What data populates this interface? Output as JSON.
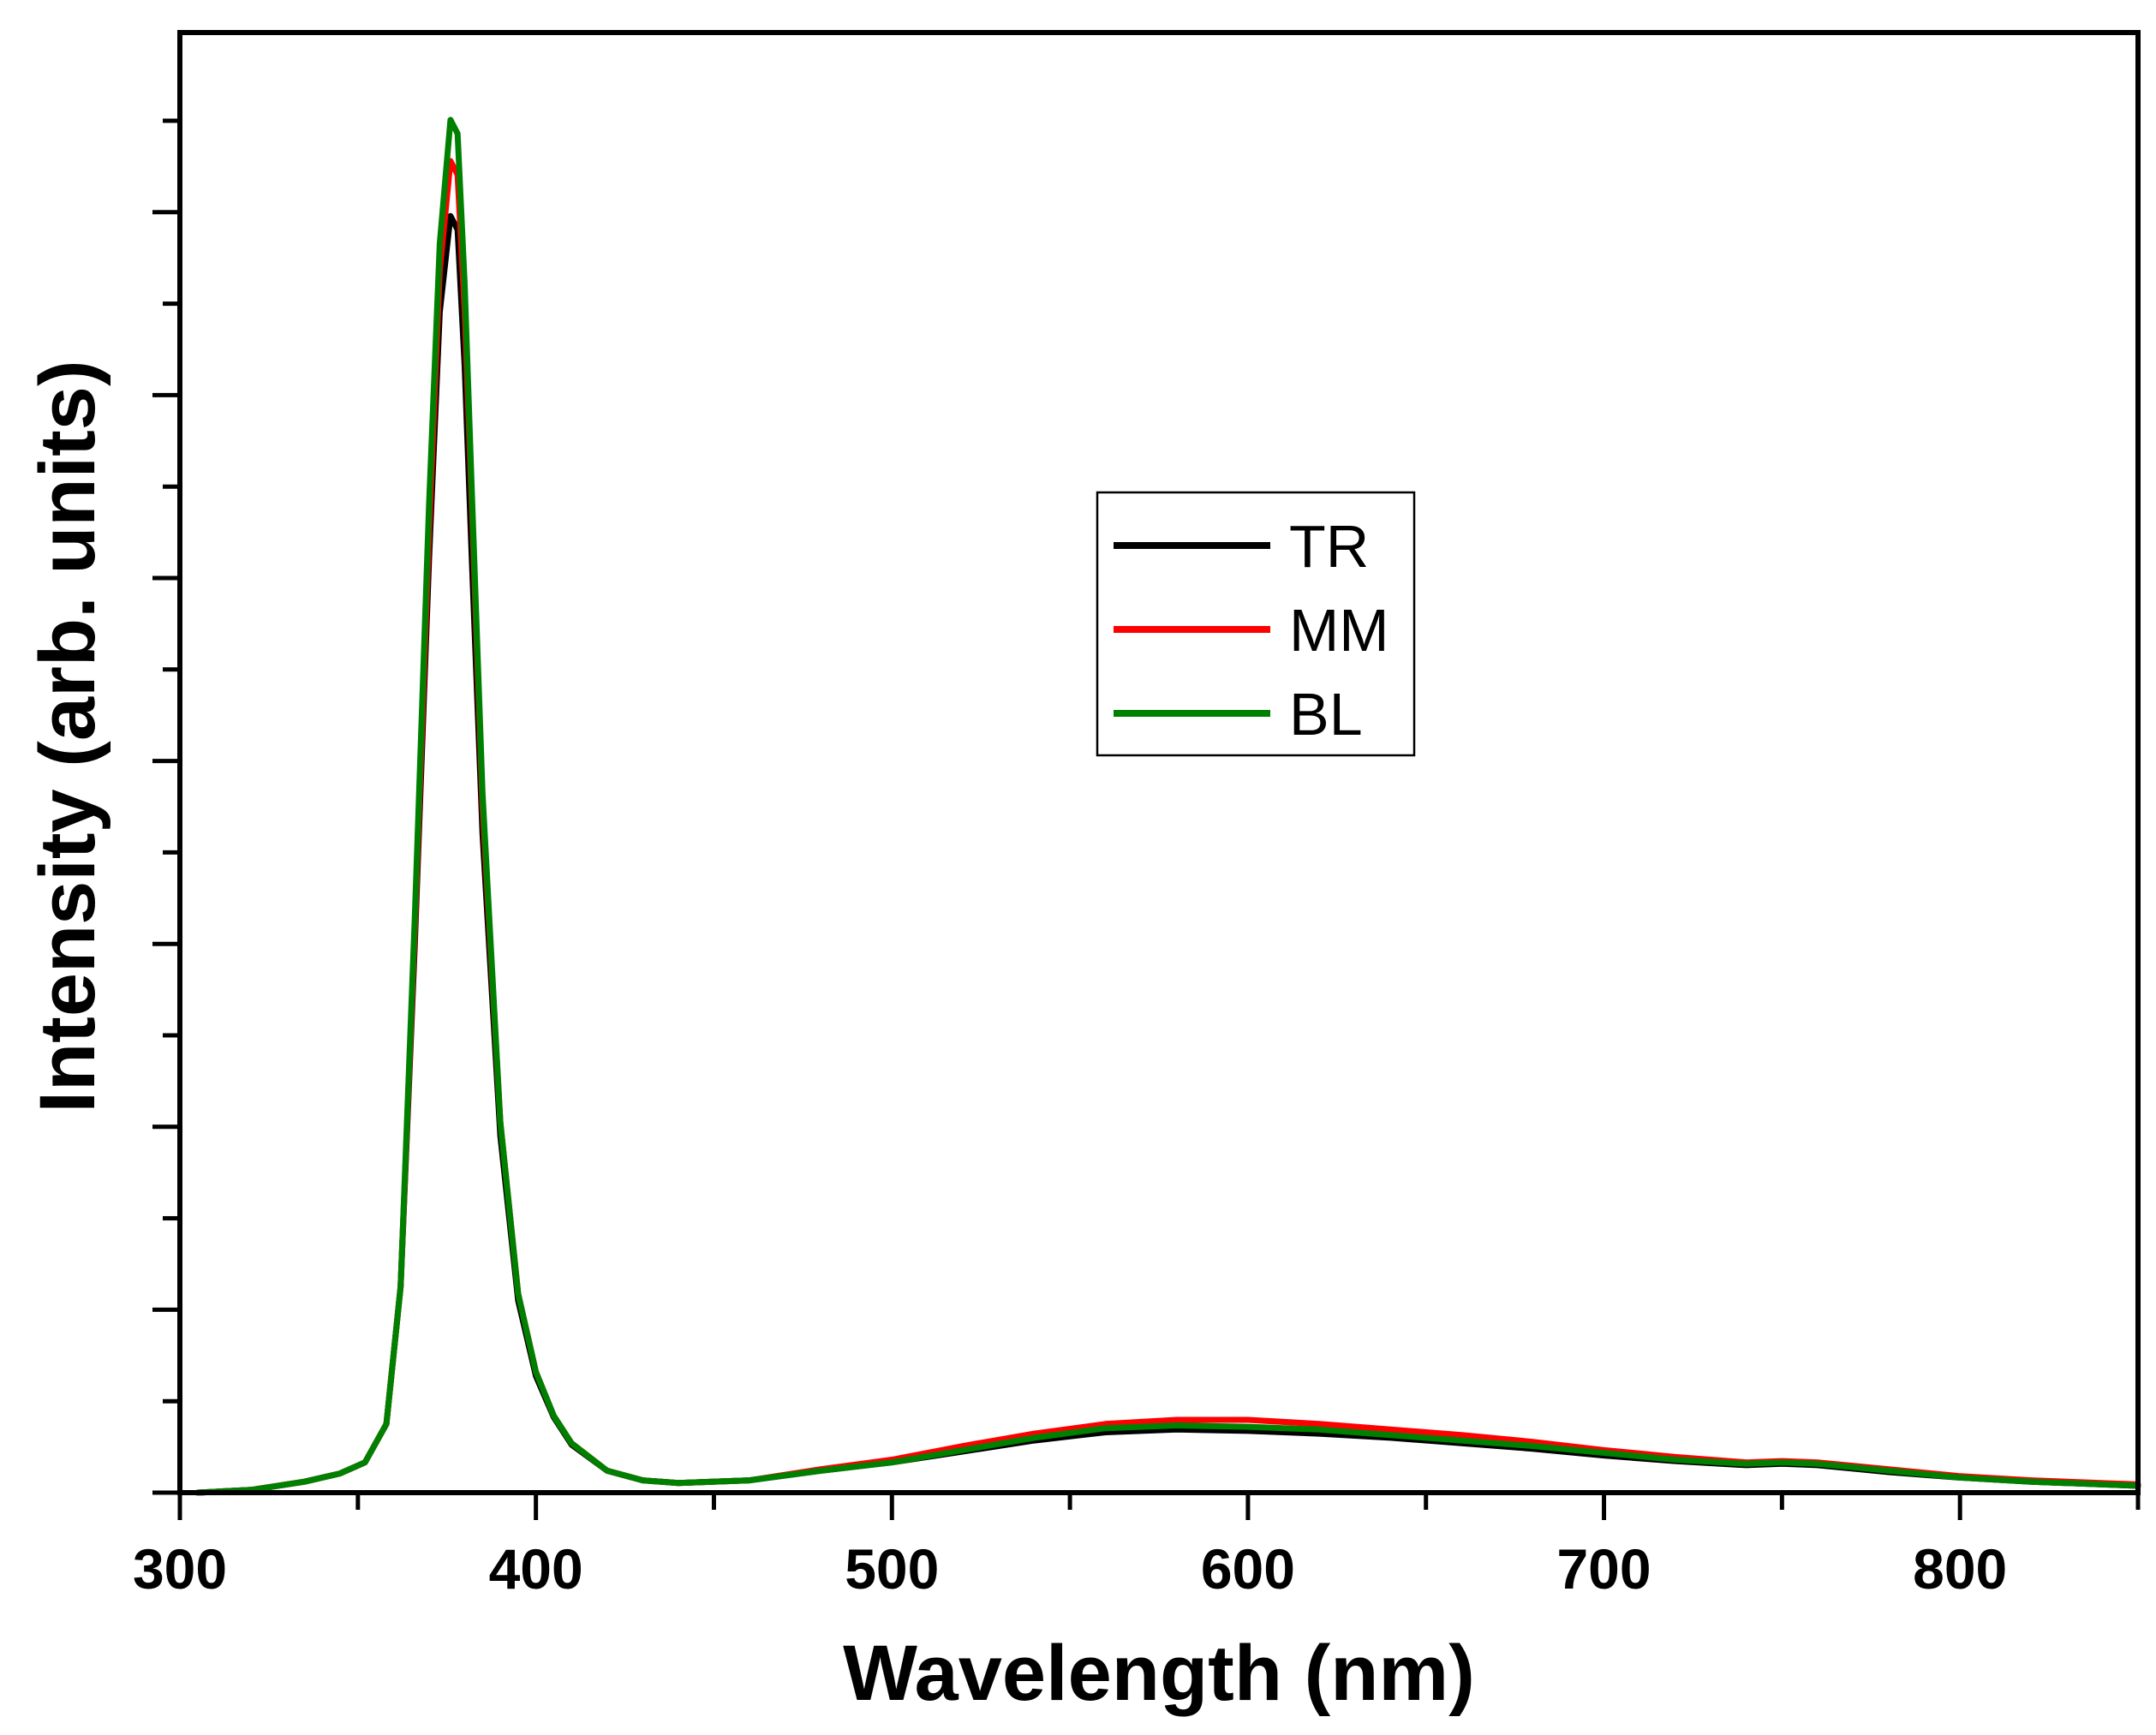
{
  "chart_data": {
    "type": "line",
    "title": "",
    "xlabel": "Wavelength (nm)",
    "ylabel": "Intensity (arb. units)",
    "xlim": [
      300,
      850
    ],
    "ylim": [
      0,
      1.0
    ],
    "x_ticks": [
      300,
      400,
      500,
      600,
      700,
      800
    ],
    "x_tick_labels": [
      "300",
      "400",
      "500",
      "600",
      "700",
      "800"
    ],
    "y_tick_labels_shown": false,
    "legend_position": "center",
    "series": [
      {
        "name": "TR",
        "color": "#000000",
        "x": [
          305,
          320,
          335,
          345,
          352,
          358,
          362,
          366,
          370,
          373,
          376,
          378,
          380,
          382,
          385,
          390,
          395,
          400,
          405,
          410,
          420,
          430,
          440,
          460,
          480,
          500,
          520,
          540,
          560,
          580,
          600,
          620,
          640,
          660,
          680,
          700,
          720,
          740,
          750,
          760,
          780,
          800,
          820,
          850
        ],
        "y": [
          0.0,
          0.002,
          0.008,
          0.014,
          0.022,
          0.05,
          0.15,
          0.4,
          0.68,
          0.86,
          0.93,
          0.92,
          0.82,
          0.68,
          0.48,
          0.26,
          0.14,
          0.085,
          0.055,
          0.035,
          0.016,
          0.009,
          0.007,
          0.009,
          0.016,
          0.022,
          0.03,
          0.038,
          0.044,
          0.046,
          0.045,
          0.043,
          0.04,
          0.036,
          0.032,
          0.027,
          0.023,
          0.02,
          0.021,
          0.02,
          0.015,
          0.011,
          0.008,
          0.005
        ]
      },
      {
        "name": "MM",
        "color": "#ff0000",
        "x": [
          305,
          320,
          335,
          345,
          352,
          358,
          362,
          366,
          370,
          373,
          376,
          378,
          380,
          382,
          385,
          390,
          395,
          400,
          405,
          410,
          420,
          430,
          440,
          460,
          480,
          500,
          520,
          540,
          560,
          580,
          600,
          620,
          640,
          660,
          680,
          700,
          720,
          740,
          750,
          760,
          780,
          800,
          820,
          850
        ],
        "y": [
          0.0,
          0.002,
          0.008,
          0.014,
          0.022,
          0.05,
          0.15,
          0.41,
          0.7,
          0.89,
          0.97,
          0.96,
          0.86,
          0.72,
          0.5,
          0.27,
          0.145,
          0.088,
          0.056,
          0.036,
          0.016,
          0.009,
          0.007,
          0.009,
          0.017,
          0.024,
          0.034,
          0.043,
          0.05,
          0.053,
          0.053,
          0.05,
          0.046,
          0.042,
          0.037,
          0.031,
          0.026,
          0.022,
          0.023,
          0.022,
          0.017,
          0.012,
          0.009,
          0.006
        ]
      },
      {
        "name": "BL",
        "color": "#008000",
        "x": [
          305,
          320,
          335,
          345,
          352,
          358,
          362,
          366,
          370,
          373,
          376,
          378,
          380,
          382,
          385,
          390,
          395,
          400,
          405,
          410,
          420,
          430,
          440,
          460,
          480,
          500,
          520,
          540,
          560,
          580,
          600,
          620,
          640,
          660,
          680,
          700,
          720,
          740,
          750,
          760,
          780,
          800,
          820,
          850
        ],
        "y": [
          0.0,
          0.002,
          0.008,
          0.014,
          0.022,
          0.05,
          0.15,
          0.42,
          0.72,
          0.91,
          1.0,
          0.99,
          0.88,
          0.73,
          0.51,
          0.27,
          0.145,
          0.088,
          0.056,
          0.036,
          0.016,
          0.009,
          0.007,
          0.009,
          0.016,
          0.022,
          0.031,
          0.04,
          0.047,
          0.049,
          0.048,
          0.046,
          0.042,
          0.038,
          0.034,
          0.029,
          0.024,
          0.021,
          0.022,
          0.021,
          0.016,
          0.011,
          0.008,
          0.005
        ]
      }
    ]
  }
}
